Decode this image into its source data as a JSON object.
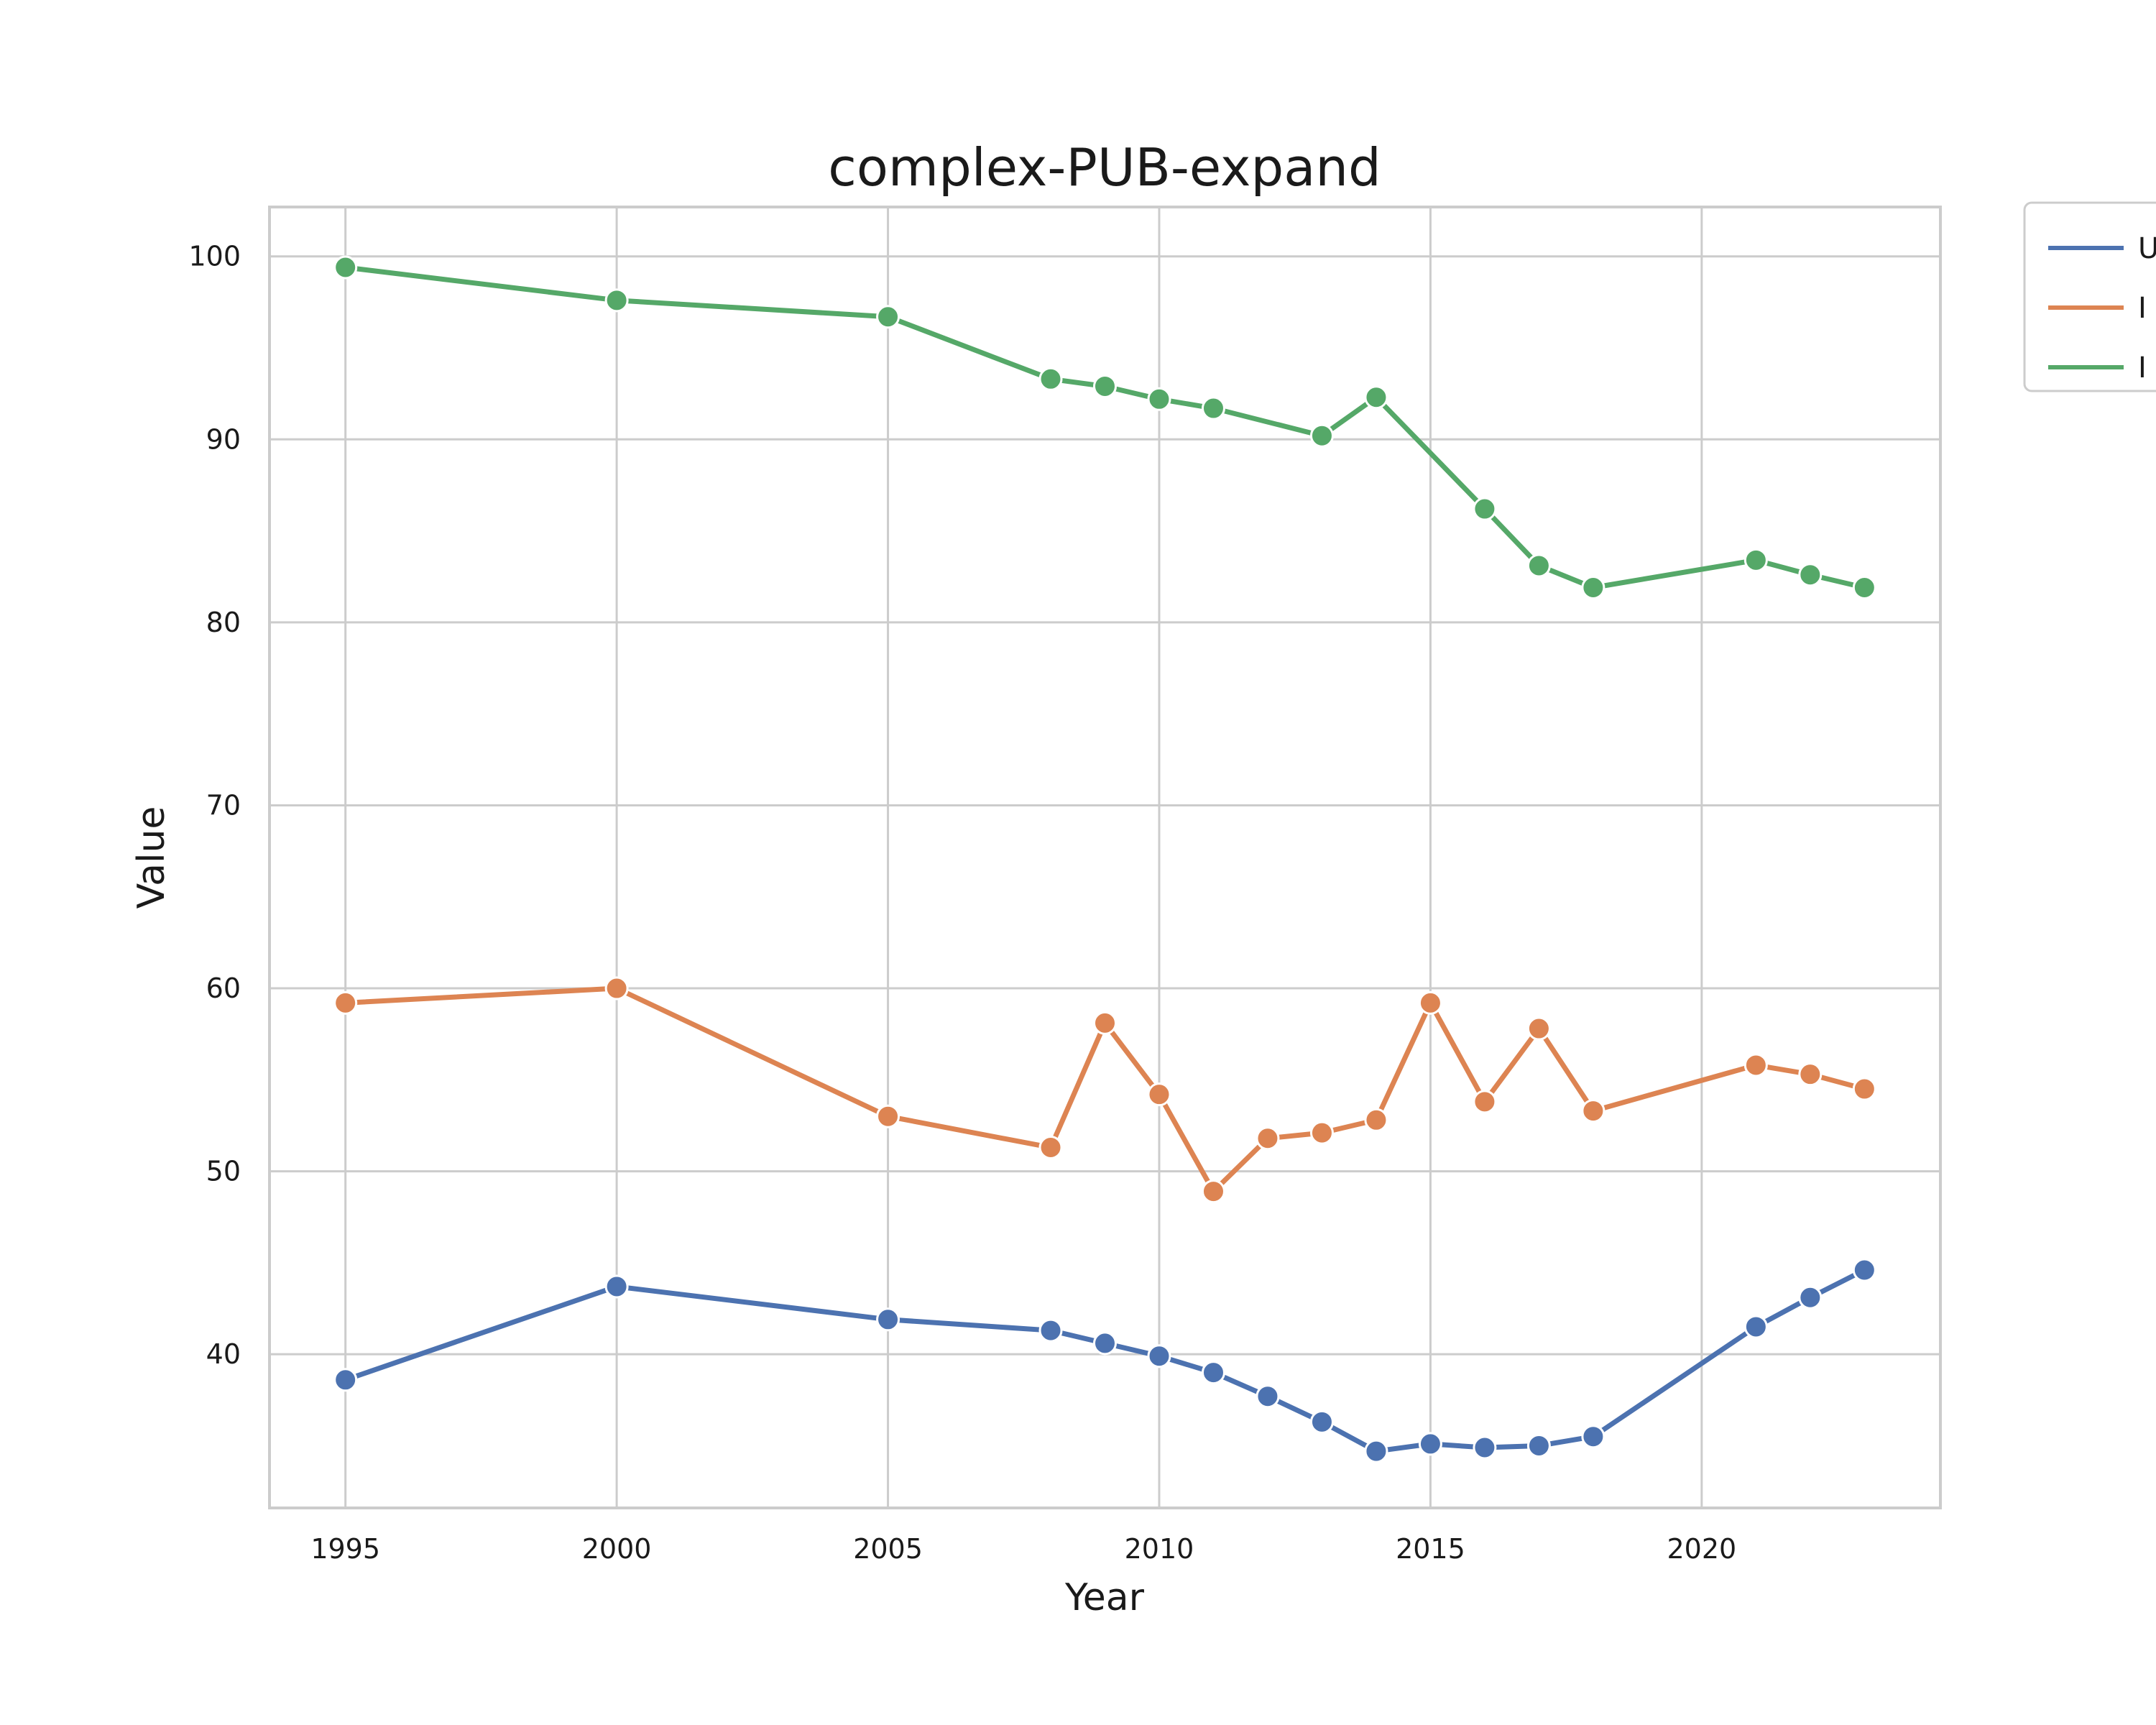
{
  "chart_data": {
    "type": "line",
    "title": "complex-PUB-expand",
    "xlabel": "Year",
    "ylabel": "Value",
    "xlim": [
      1993.6,
      2024.4
    ],
    "ylim": [
      31.6,
      102.7
    ],
    "x_ticks": [
      1995,
      2000,
      2005,
      2010,
      2015,
      2020
    ],
    "y_ticks": [
      40,
      50,
      60,
      70,
      80,
      90,
      100
    ],
    "grid": true,
    "legend_position": "outside top-right (cut off)",
    "x": [
      1995,
      2000,
      2005,
      2008,
      2009,
      2010,
      2011,
      2012,
      2013,
      2014,
      2015,
      2016,
      2017,
      2018,
      2021,
      2022,
      2023
    ],
    "series": [
      {
        "name": "U",
        "color": "#4c72b0",
        "x": [
          1995,
          2000,
          2005,
          2008,
          2009,
          2010,
          2011,
          2012,
          2013,
          2014,
          2015,
          2016,
          2017,
          2018,
          2021,
          2022,
          2023
        ],
        "values": [
          38.6,
          43.7,
          41.9,
          41.3,
          40.6,
          39.9,
          39.0,
          37.7,
          36.3,
          34.7,
          35.1,
          34.9,
          35.0,
          35.5,
          41.5,
          43.1,
          44.6
        ]
      },
      {
        "name": "I",
        "color": "#dd8452",
        "x": [
          1995,
          2000,
          2005,
          2008,
          2009,
          2010,
          2011,
          2012,
          2013,
          2014,
          2015,
          2016,
          2017,
          2018,
          2021,
          2022,
          2023
        ],
        "values": [
          59.2,
          60.0,
          53.0,
          51.3,
          58.1,
          54.2,
          48.9,
          51.8,
          52.1,
          52.8,
          59.2,
          53.8,
          57.8,
          53.3,
          55.8,
          55.3,
          54.5
        ]
      },
      {
        "name": "I",
        "color": "#55a868",
        "x": [
          1995,
          2000,
          2005,
          2008,
          2009,
          2010,
          2011,
          2012,
          2013,
          2014,
          2015,
          2016,
          2017,
          2018,
          2021,
          2022,
          2023
        ],
        "values": [
          99.4,
          97.6,
          96.7,
          93.3,
          92.9,
          92.2,
          91.7,
          null,
          90.2,
          92.3,
          null,
          86.2,
          83.1,
          81.9,
          83.4,
          82.6,
          81.9
        ]
      }
    ]
  }
}
